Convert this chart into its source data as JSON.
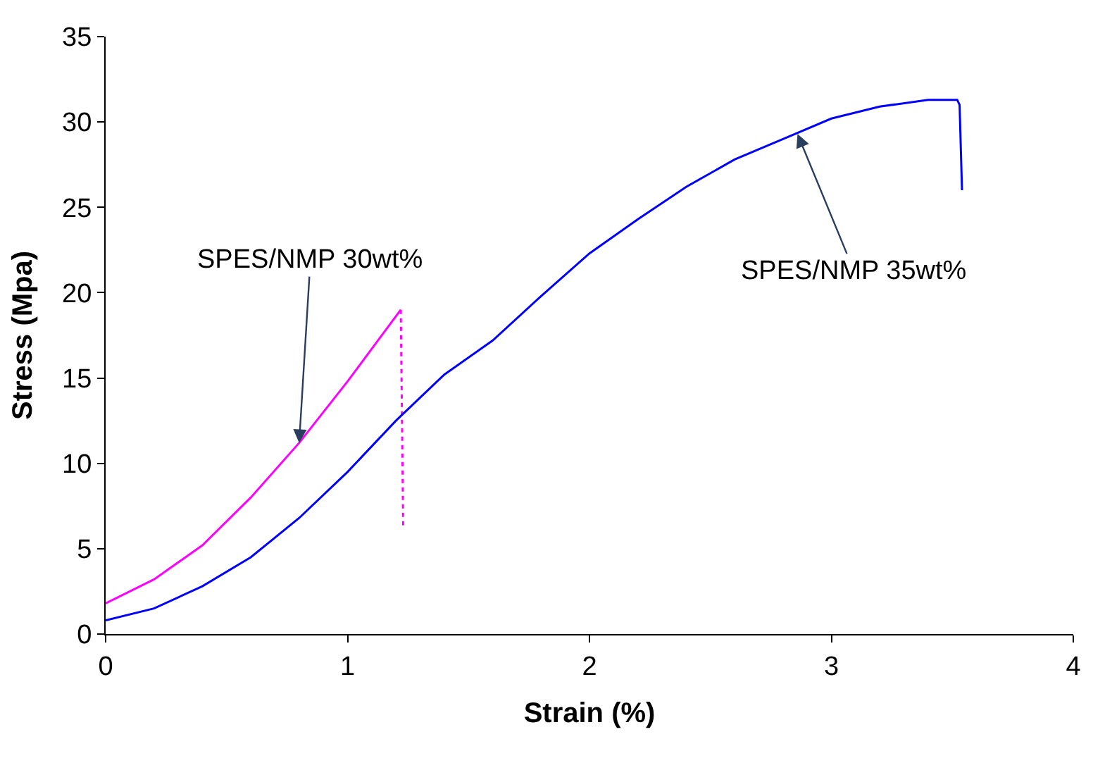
{
  "chart_data": {
    "type": "line",
    "xlabel": "Strain (%)",
    "ylabel": "Stress (Mpa)",
    "xlim": [
      0,
      4
    ],
    "xticks": [
      0,
      1,
      2,
      3,
      4
    ],
    "ylim": [
      0,
      35
    ],
    "yticks": [
      0,
      5,
      10,
      15,
      20,
      25,
      30,
      35
    ],
    "marker": "none",
    "series": [
      {
        "color": "#ff00ff",
        "line_style": "solid",
        "x": [
          0,
          0.2,
          0.4,
          0.6,
          0.8,
          1.0,
          1.22
        ],
        "values": [
          1.8,
          3.2,
          5.2,
          8,
          11.2,
          14.8,
          19
        ]
      },
      {
        "color": "#ff00ff",
        "line_style": "dotted",
        "x": [
          1.22,
          1.23
        ],
        "values": [
          19,
          6.2
        ]
      },
      {
        "color": "#0000ff",
        "line_style": "solid",
        "x": [
          0,
          0.2,
          0.4,
          0.6,
          0.8,
          1.0,
          1.2,
          1.4,
          1.6,
          1.8,
          2.0,
          2.2,
          2.4,
          2.6,
          2.8,
          3.0,
          3.2,
          3.4,
          3.52,
          3.53,
          3.54
        ],
        "values": [
          0.8,
          1.5,
          2.8,
          4.5,
          6.8,
          9.5,
          12.5,
          15.2,
          17.2,
          19.8,
          22.3,
          24.3,
          26.2,
          27.8,
          29.0,
          30.2,
          30.9,
          31.3,
          31.3,
          31.0,
          26
        ]
      }
    ],
    "annotations": [
      {
        "text": "SPES/NMP 30wt%",
        "x": 0.8,
        "y": 11.2
      },
      {
        "text": "SPES/NMP 35wt%",
        "x": 2.86,
        "y": 29.3
      }
    ]
  }
}
